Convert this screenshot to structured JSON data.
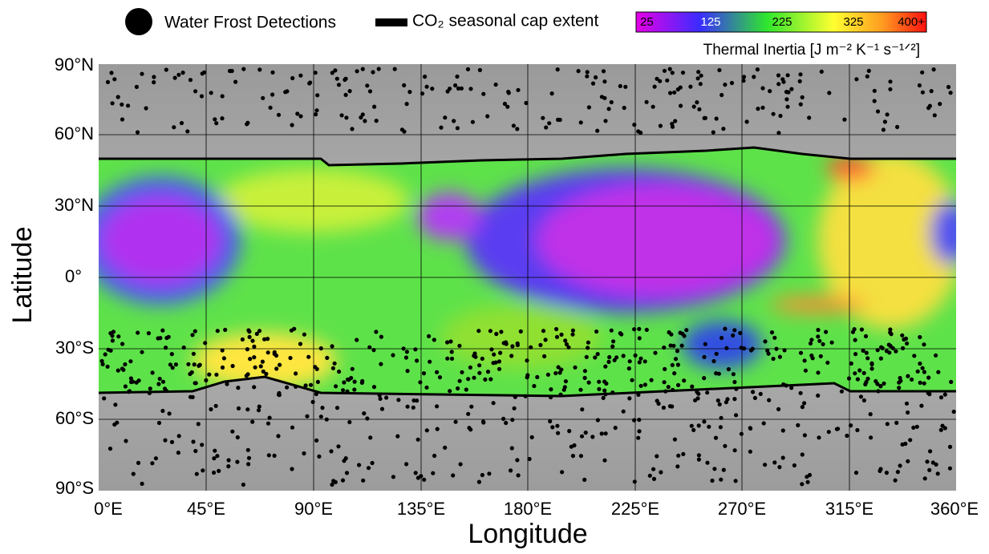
{
  "legend": {
    "frost": "Water Frost Detections",
    "cap": "CO₂ seasonal cap extent"
  },
  "colorbar": {
    "ticks": [
      "25",
      "125",
      "225",
      "325",
      "400+"
    ],
    "title": "Thermal Inertia  [J m⁻² K⁻¹ s⁻¹ᐟ²]"
  },
  "axes": {
    "y_label": "Latitude",
    "x_label": "Longitude",
    "y_ticks": [
      "90°N",
      "60°N",
      "30°N",
      "0°",
      "30°S",
      "60°S",
      "90°S"
    ],
    "x_ticks": [
      "0°E",
      "45°E",
      "90°E",
      "135°E",
      "180°E",
      "225°E",
      "270°E",
      "315°E",
      "360°E"
    ]
  }
}
